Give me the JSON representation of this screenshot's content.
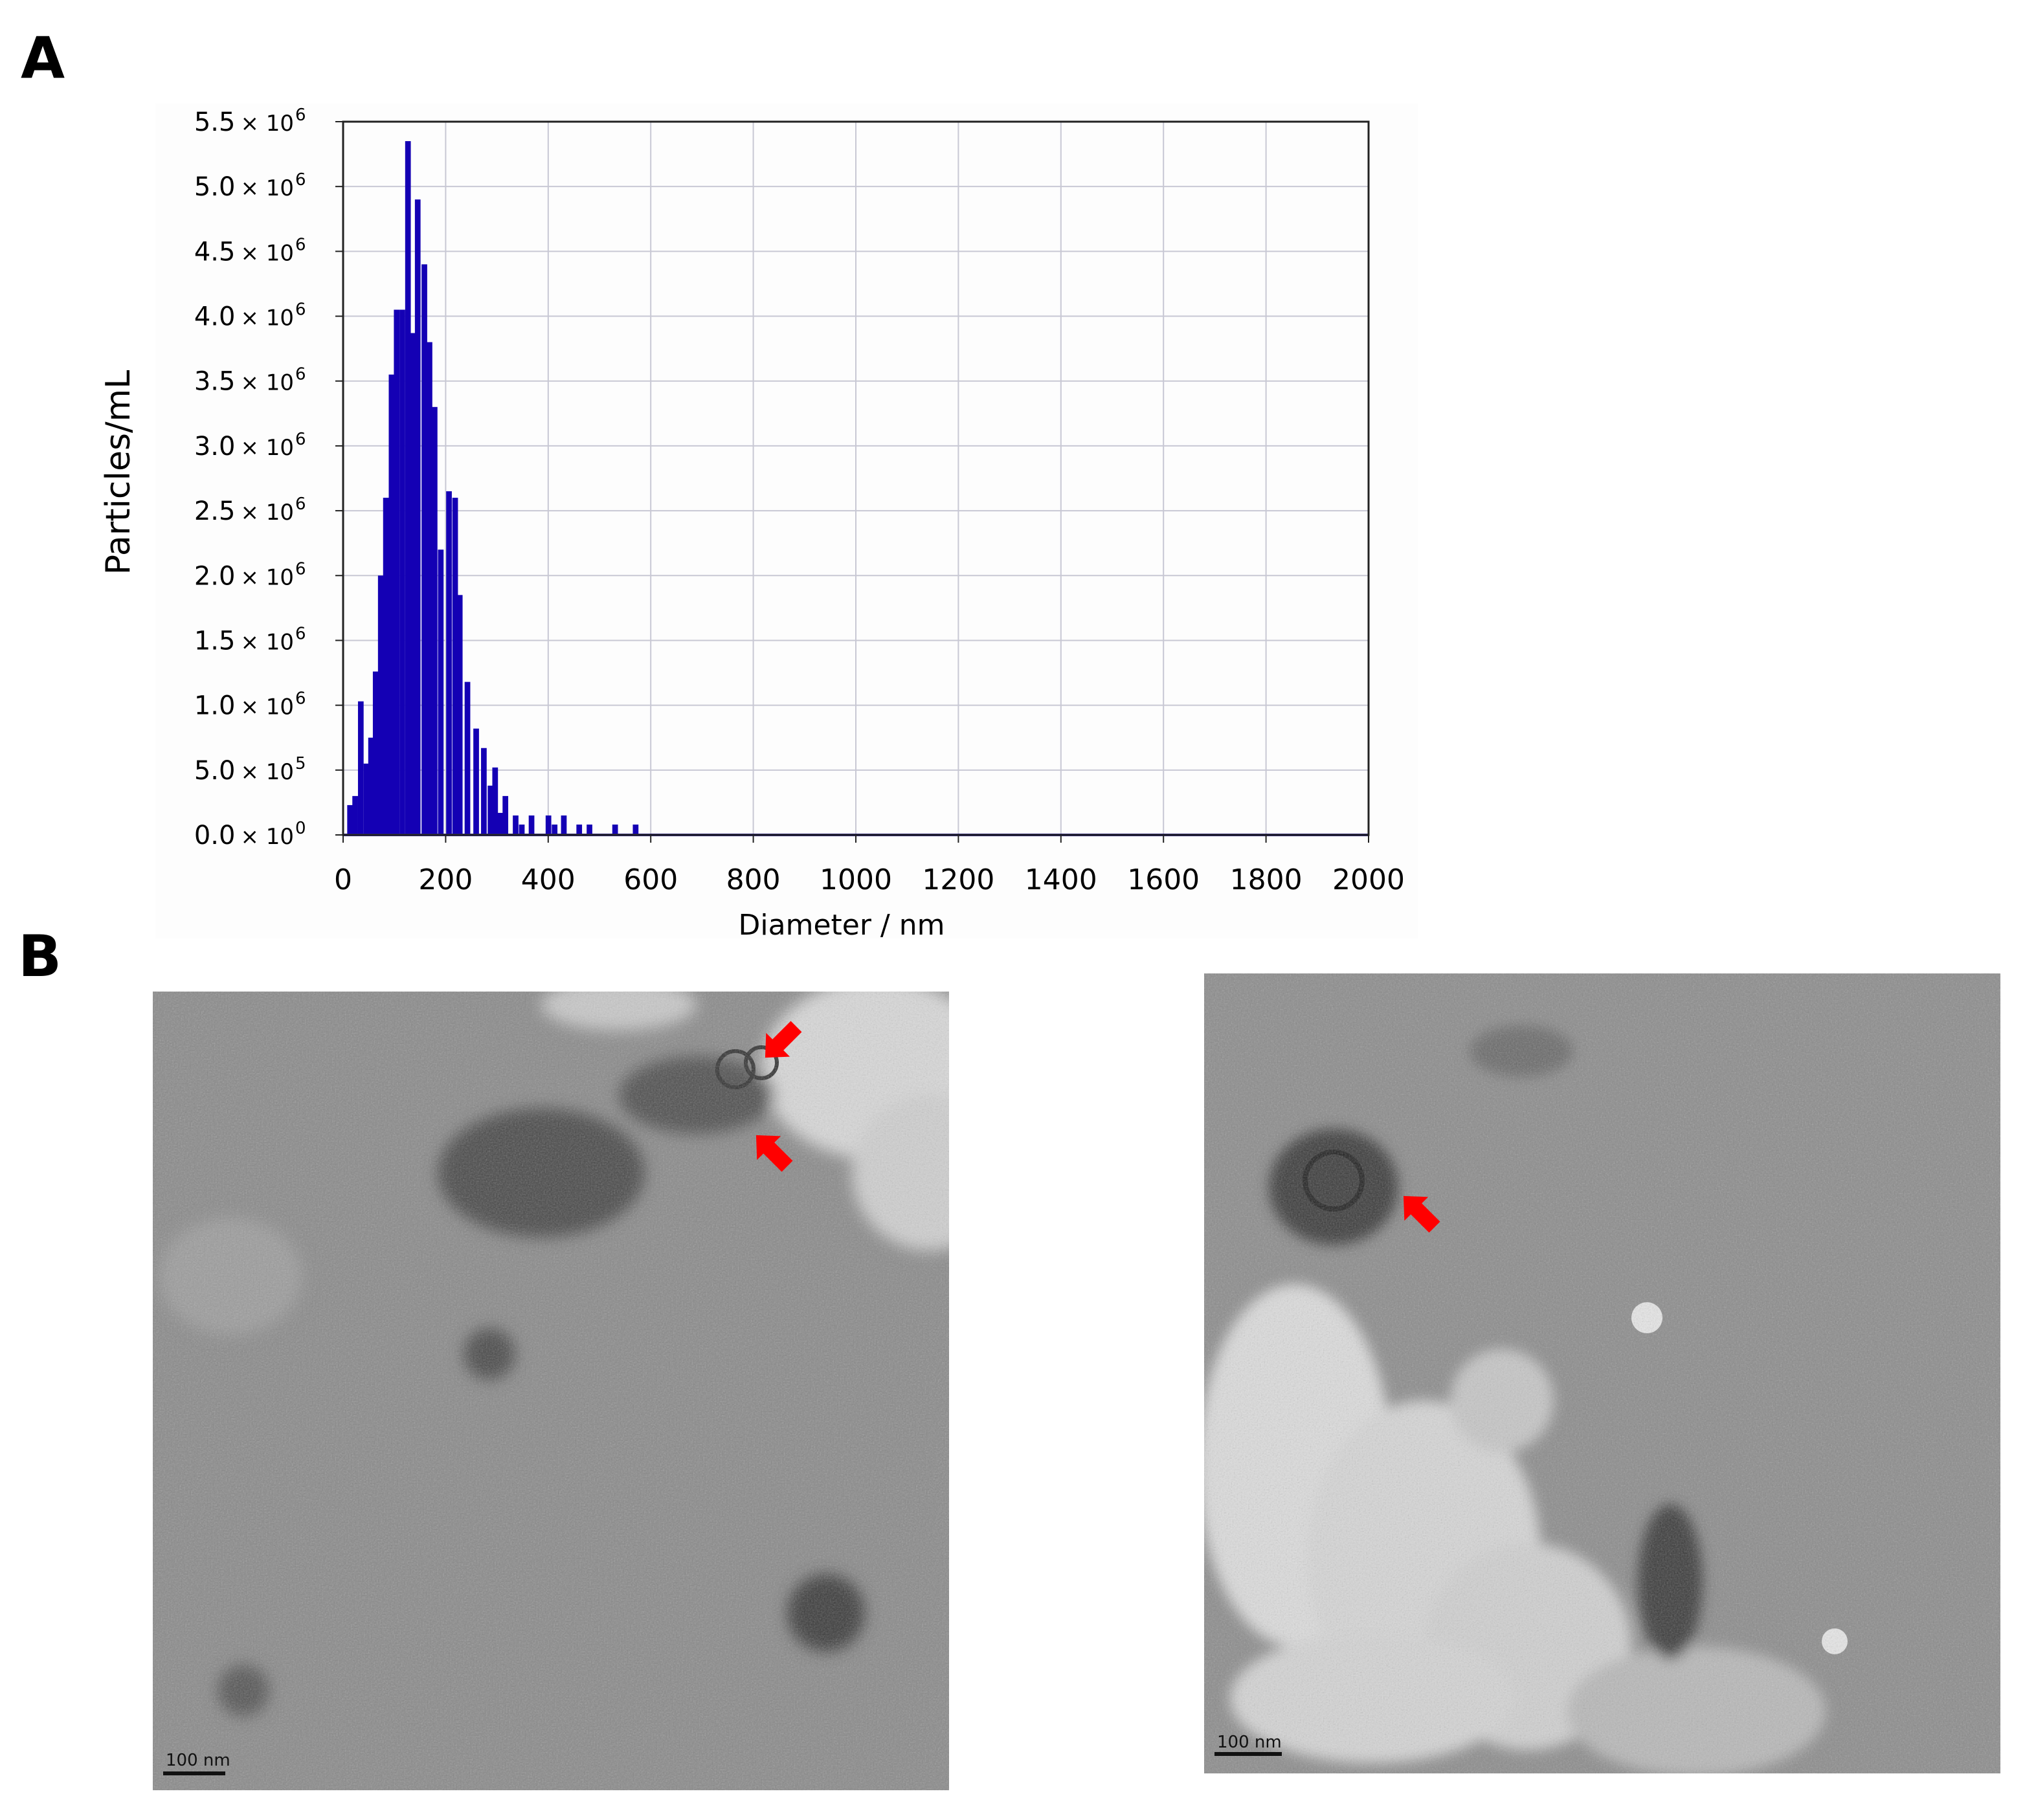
{
  "panels": {
    "a_label": "A",
    "b_label": "B"
  },
  "chart_data": {
    "type": "bar",
    "xlabel": "Diameter / nm",
    "ylabel": "Particles/mL",
    "xlim": [
      0,
      2000
    ],
    "ylim": [
      0,
      5500000
    ],
    "grid": true,
    "bar_color": "#1400b4",
    "x_ticks": [
      "0",
      "200",
      "400",
      "600",
      "800",
      "1000",
      "1200",
      "1400",
      "1600",
      "1800",
      "2000"
    ],
    "y_ticks": [
      {
        "value": 0,
        "mantissa": "0.0",
        "times": "× 10",
        "exp": "0"
      },
      {
        "value": 500000,
        "mantissa": "5.0",
        "times": "× 10",
        "exp": "5"
      },
      {
        "value": 1000000,
        "mantissa": "1.0",
        "times": "× 10",
        "exp": "6"
      },
      {
        "value": 1500000,
        "mantissa": "1.5",
        "times": "× 10",
        "exp": "6"
      },
      {
        "value": 2000000,
        "mantissa": "2.0",
        "times": "× 10",
        "exp": "6"
      },
      {
        "value": 2500000,
        "mantissa": "2.5",
        "times": "× 10",
        "exp": "6"
      },
      {
        "value": 3000000,
        "mantissa": "3.0",
        "times": "× 10",
        "exp": "6"
      },
      {
        "value": 3500000,
        "mantissa": "3.5",
        "times": "× 10",
        "exp": "6"
      },
      {
        "value": 4000000,
        "mantissa": "4.0",
        "times": "× 10",
        "exp": "6"
      },
      {
        "value": 4500000,
        "mantissa": "4.5",
        "times": "× 10",
        "exp": "6"
      },
      {
        "value": 5000000,
        "mantissa": "5.0",
        "times": "× 10",
        "exp": "6"
      },
      {
        "value": 5500000,
        "mantissa": "5.5",
        "times": "× 10",
        "exp": "6"
      }
    ],
    "bins_nm": [
      13,
      23,
      34,
      45,
      54,
      63,
      73,
      83,
      94,
      104,
      115,
      126,
      136,
      145,
      158,
      168,
      178,
      190,
      206,
      218,
      227,
      242,
      259,
      274,
      287,
      296,
      306,
      316,
      336,
      348,
      367,
      400,
      412,
      430,
      460,
      480,
      530,
      570
    ],
    "values": [
      230000,
      300000,
      1030000,
      550000,
      750000,
      1260000,
      2000000,
      2600000,
      3550000,
      4050000,
      4050000,
      5350000,
      3870000,
      4900000,
      4400000,
      3800000,
      3300000,
      2200000,
      2650000,
      2600000,
      1850000,
      1180000,
      820000,
      670000,
      380000,
      520000,
      170000,
      300000,
      150000,
      80000,
      150000,
      150000,
      80000,
      150000,
      80000,
      80000,
      80000,
      80000
    ]
  },
  "tem_images": [
    {
      "scale_bar_label": "100 nm",
      "arrow_color": "#ff0000"
    },
    {
      "scale_bar_label": "100 nm",
      "arrow_color": "#ff0000"
    }
  ]
}
